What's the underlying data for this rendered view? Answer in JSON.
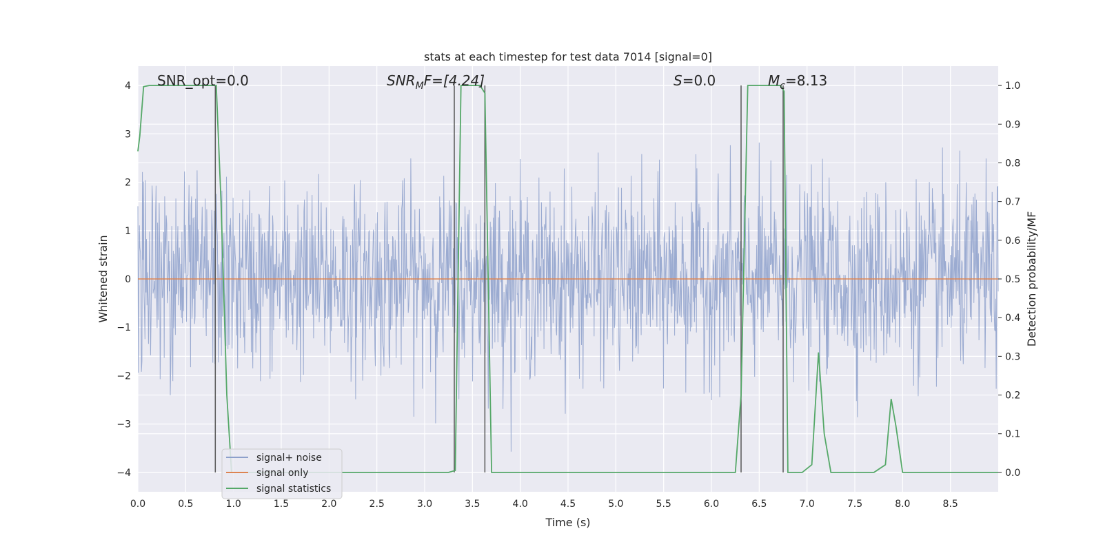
{
  "chart_data": {
    "type": "line",
    "title": "stats at each timestep for test data 7014 [signal=0]",
    "xlabel": "Time (s)",
    "ylabel": "Whitened strain",
    "ylabel_right": "Detection probability/MF",
    "xlim": [
      0.0,
      9.0
    ],
    "ylim": [
      -4.4,
      4.4
    ],
    "ylim_right": [
      -0.05,
      1.05
    ],
    "x_ticks": [
      "0.0",
      "0.5",
      "1.0",
      "1.5",
      "2.0",
      "2.5",
      "3.0",
      "3.5",
      "4.0",
      "4.5",
      "5.0",
      "5.5",
      "6.0",
      "6.5",
      "7.0",
      "7.5",
      "8.0",
      "8.5"
    ],
    "y_ticks": [
      "−4",
      "−3",
      "−2",
      "−1",
      "0",
      "1",
      "2",
      "3",
      "4"
    ],
    "y_ticks_right": [
      "0.0",
      "0.1",
      "0.2",
      "0.3",
      "0.4",
      "0.5",
      "0.6",
      "0.7",
      "0.8",
      "0.9",
      "1.0"
    ],
    "grid": true,
    "legend_position": "lower-left",
    "annotations": {
      "snr_opt": "SNR_opt=0.0",
      "snr_mf_base": "SNR",
      "snr_mf_sub": "M",
      "snr_mf_rest": "F=[4.24]",
      "s_italic": "S",
      "s_rest": "=0.0",
      "mc_base": "M",
      "mc_sub": "c",
      "mc_rest": "=8.13"
    },
    "series": [
      {
        "name": "signal+ noise",
        "color": "#8da0cb",
        "description": "whitened noise, mostly within ±1.6 with spikes to about ±3.9"
      },
      {
        "name": "signal only",
        "color": "#dd8452",
        "values_constant": 0.0
      },
      {
        "name": "signal statistics",
        "color": "#55a868",
        "axis": "right",
        "x": [
          0.0,
          0.02,
          0.06,
          0.12,
          0.8,
          0.82,
          0.87,
          0.93,
          0.98,
          3.25,
          3.32,
          3.35,
          3.38,
          3.58,
          3.63,
          3.7,
          3.75,
          4.2,
          6.25,
          6.31,
          6.38,
          6.72,
          6.76,
          6.8,
          6.86,
          6.95,
          7.05,
          7.12,
          7.18,
          7.25,
          7.35,
          7.7,
          7.82,
          7.88,
          7.93,
          8.0,
          8.06,
          8.2,
          9.0
        ],
        "y": [
          0.83,
          0.87,
          0.997,
          1.0,
          1.0,
          1.0,
          0.7,
          0.2,
          0.0,
          0.0,
          0.005,
          0.5,
          1.0,
          1.0,
          0.98,
          0.0,
          0.0,
          0.0,
          0.0,
          0.2,
          1.0,
          1.0,
          0.985,
          0.0,
          0.0,
          0.0,
          0.02,
          0.31,
          0.1,
          0.0,
          0.0,
          0.0,
          0.02,
          0.19,
          0.12,
          0.0,
          0.0,
          0.0,
          0.0
        ]
      }
    ],
    "vlines_x": [
      0.81,
      3.31,
      3.63,
      6.31,
      6.75
    ],
    "vlines_y_range": [
      -4.0,
      4.0
    ],
    "vline_color": "#555555"
  }
}
